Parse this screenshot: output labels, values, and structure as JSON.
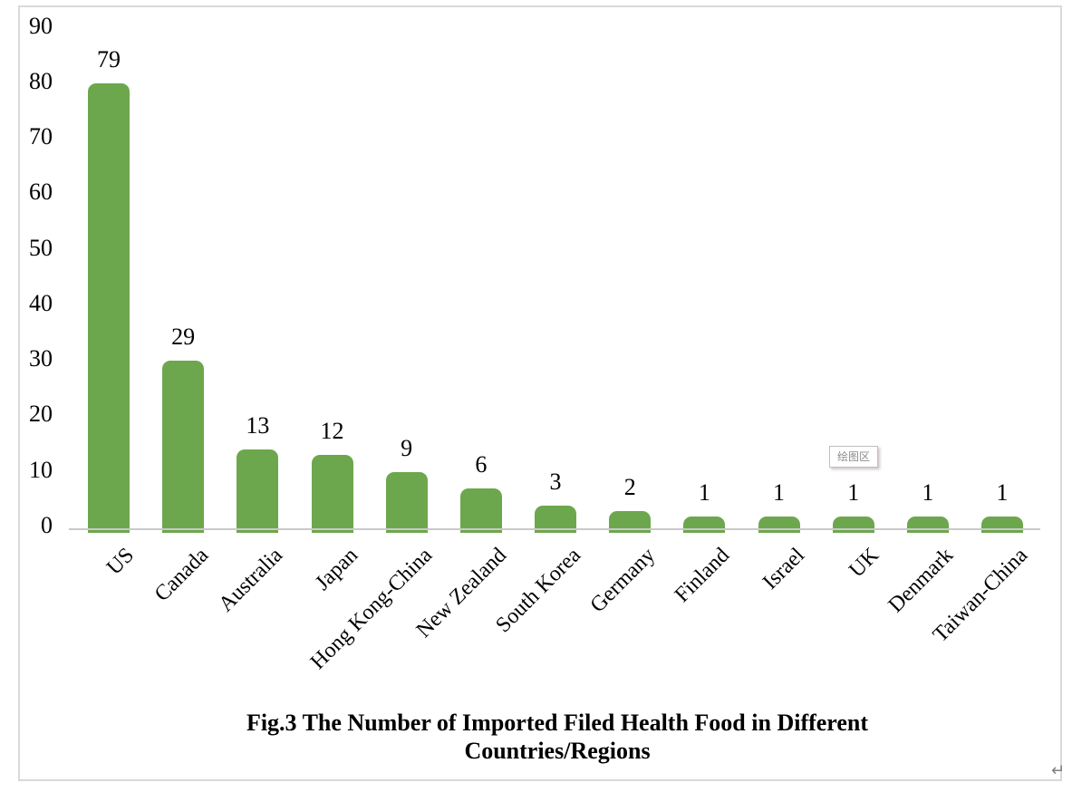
{
  "chart_data": {
    "type": "bar",
    "title": "Fig.3 The Number of Imported Filed Health Food in Different Countries/Regions",
    "title_lines": [
      "Fig.3 The Number of Imported Filed Health Food in Different",
      "Countries/Regions"
    ],
    "categories": [
      "US",
      "Canada",
      "Australia",
      "Japan",
      "Hong Kong-China",
      "New Zealand",
      "South Korea",
      "Germany",
      "Finland",
      "Israel",
      "UK",
      "Denmark",
      "Taiwan-China"
    ],
    "values": [
      79,
      29,
      13,
      12,
      9,
      6,
      3,
      2,
      1,
      1,
      1,
      1,
      1
    ],
    "xlabel": "",
    "ylabel": "",
    "ylim": [
      0,
      90
    ],
    "yticks": [
      0,
      10,
      20,
      30,
      40,
      50,
      60,
      70,
      80,
      90
    ],
    "grid": false,
    "legend": false,
    "data_labels": true,
    "bar_color": "#6DA74D",
    "axis_line_color": "#C9C9C9",
    "text_color": "#000000"
  },
  "overlay": {
    "plot_area_tooltip": "绘图区",
    "paragraph_mark": "↵"
  },
  "frame": {
    "border_color": "#D9D9D9"
  }
}
